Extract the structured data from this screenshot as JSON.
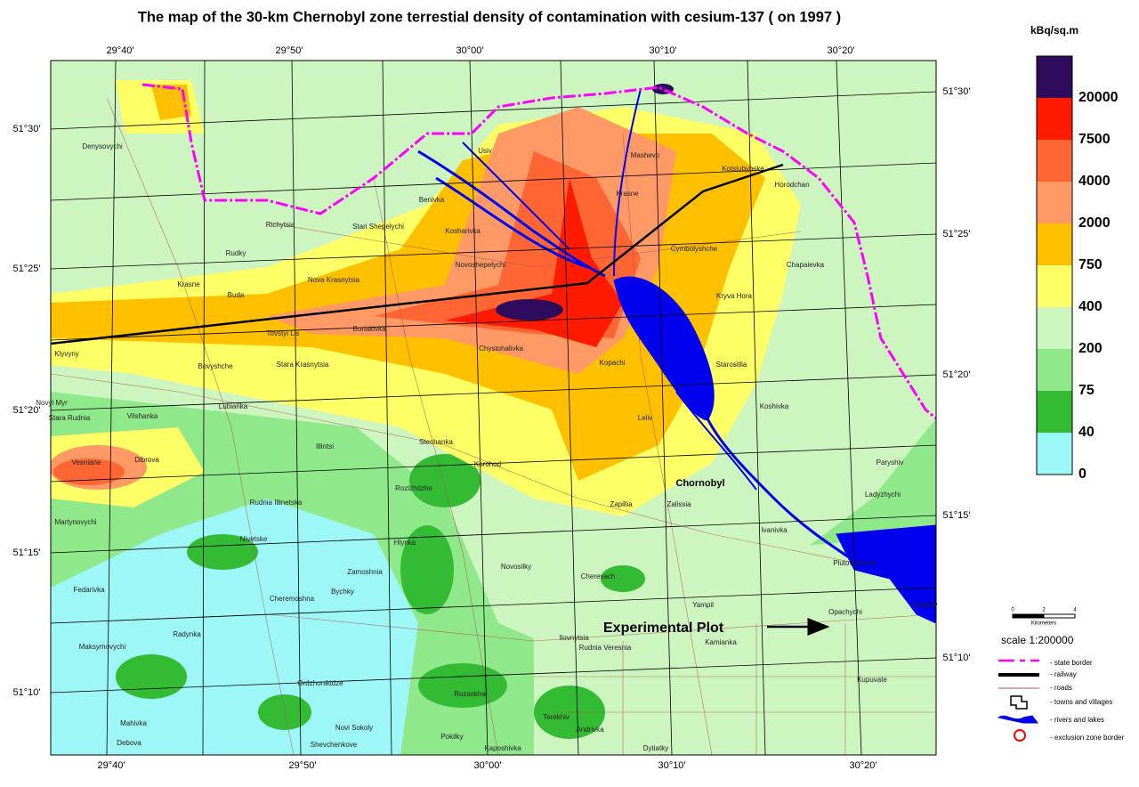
{
  "title": "The map of the 30-km Chernobyl zone terrestial density of contamination with cesium-137 ( on 1997 )",
  "legend": {
    "unit": "kBq/sq.m",
    "classes": [
      {
        "label": "20000",
        "color": "#2e0b5c"
      },
      {
        "label": "7500",
        "color": "#ff1a00"
      },
      {
        "label": "4000",
        "color": "#ff6633"
      },
      {
        "label": "2000",
        "color": "#ff9966"
      },
      {
        "label": "750",
        "color": "#ffc000"
      },
      {
        "label": "400",
        "color": "#ffff66"
      },
      {
        "label": "200",
        "color": "#ccf5c0"
      },
      {
        "label": "75",
        "color": "#8fe88a"
      },
      {
        "label": "40",
        "color": "#33bb33"
      },
      {
        "label": "0",
        "color": "#9ef7f7"
      }
    ]
  },
  "lon_labels": [
    "29°40'",
    "29°50'",
    "30°00'",
    "30°10'",
    "30°20'"
  ],
  "lat_labels": [
    "51°30'",
    "51°25'",
    "51°20'",
    "51°15'",
    "51°10'"
  ],
  "places": [
    "Denysovychi",
    "Richytsia",
    "Stari Shepelychi",
    "Benivka",
    "Usiv",
    "Mashevo",
    "Kotsiubynske",
    "Horodchan",
    "Krasne",
    "Kosharivka",
    "Rudky",
    "Novoshepelychi",
    "Chapaievka",
    "Krasne",
    "Buda",
    "Nova Krasnytsia",
    "Cymbolyshche",
    "Kryva Hora",
    "Tovstyi Lis",
    "Buriakivka",
    "Chystohalivka",
    "Kopachi",
    "Starosillia",
    "Klyvyny",
    "Bovyshche",
    "Stara Krasnytsia",
    "Novyi Myr",
    "Lubianka",
    "Stara Rudnia",
    "Vilshanka",
    "Leliv",
    "Koshivka",
    "Illintsi",
    "Stechanka",
    "Korohod",
    "Paryshiv",
    "Vesniane",
    "Dibrova",
    "Rozizhdzhe",
    "Ladyzhychi",
    "Rudnia Illinetska",
    "Zapillia",
    "Zalissia",
    "Martynovychi",
    "Nivetske",
    "Hlynka",
    "Ivanivka",
    "Zamoshnia",
    "Novosilky",
    "Plutovyshche",
    "Fedarivka",
    "Cheremoshna",
    "Bychky",
    "Cherevach",
    "Yampil",
    "Opachychi",
    "Otashiv",
    "Radynka",
    "Kamianka",
    "Ilovnytsia",
    "Rudnia Veresnia",
    "Maksymovychi",
    "Kupuvate",
    "Ordzhonikidze",
    "Rozsokha",
    "Mahivka",
    "Novi Sokoly",
    "Terekhiv",
    "Andrivka",
    "Debova",
    "Shevchenkove",
    "Kaposhivka",
    "Pokilky",
    "Dytiatky"
  ],
  "town_label": "Chornobyl",
  "annotation": "Experimental Plot",
  "scale_bar": [
    "0",
    "2",
    "4",
    "Kilometers"
  ],
  "scale": "scale 1:200000",
  "key": [
    "- state border",
    "- railway",
    "- roads",
    "- towns and villages",
    "- rivers and lakes",
    "- exclusion zone border"
  ]
}
